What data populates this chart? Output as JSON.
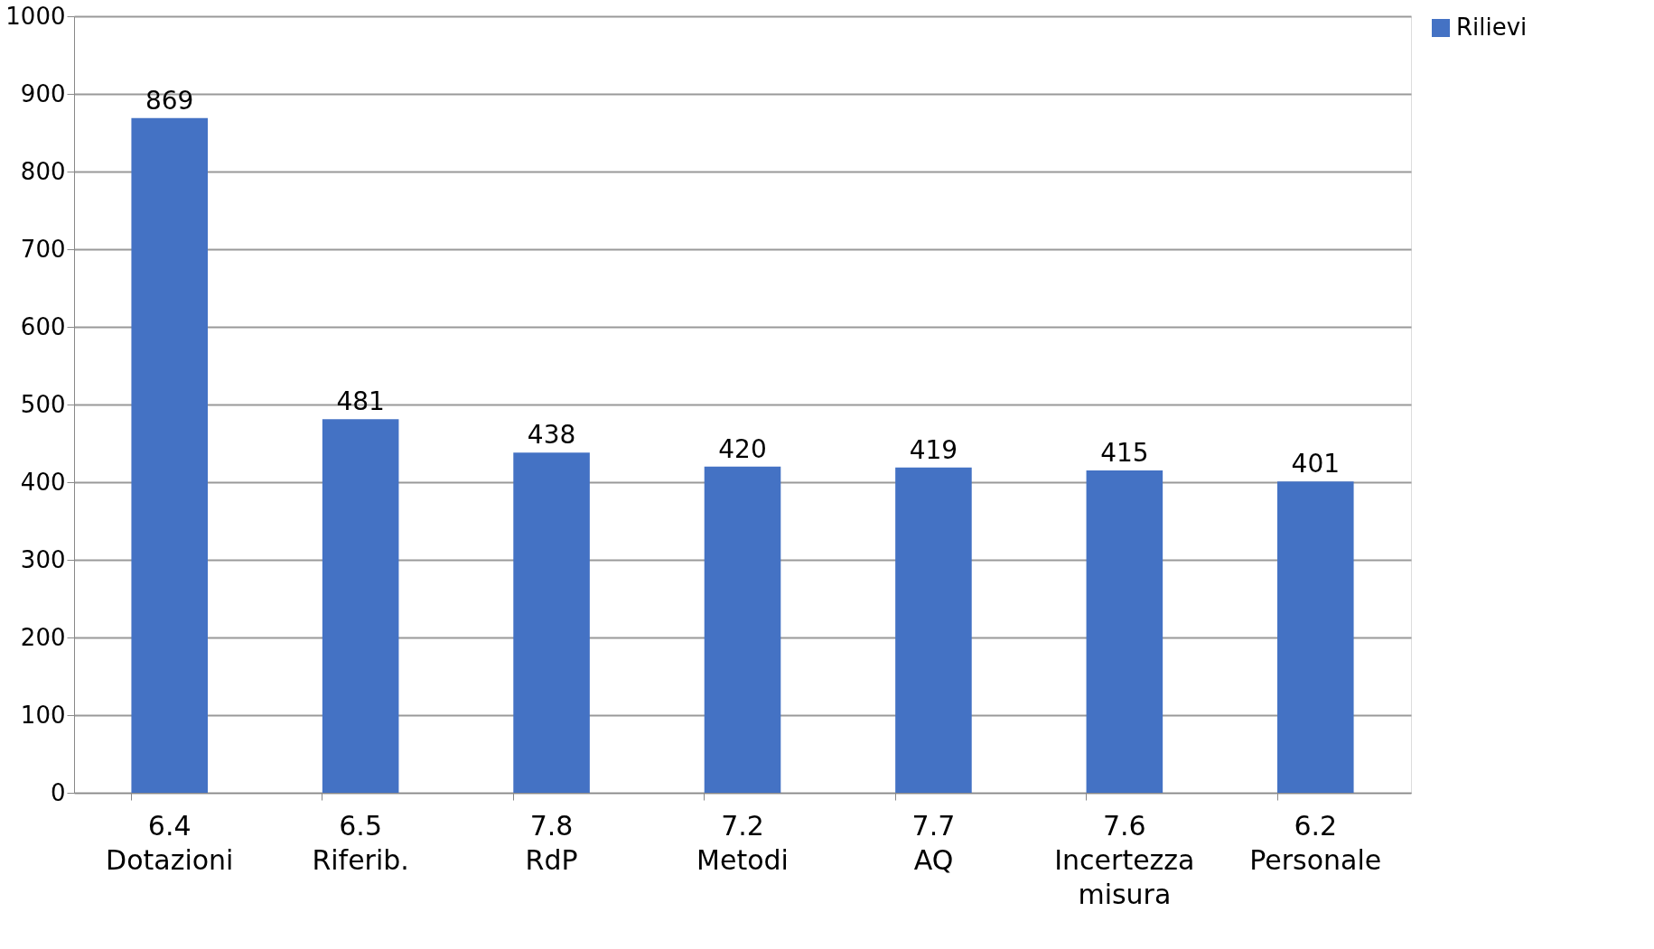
{
  "chart_data": {
    "type": "bar",
    "categories": [
      "6.4\nDotazioni",
      "6.5\nRiferib.",
      "7.8\nRdP",
      "7.2\nMetodi",
      "7.7\nAQ",
      "7.6\nIncertezza\nmisura",
      "6.2\nPersonale"
    ],
    "series": [
      {
        "name": "Rilievi",
        "color": "#4472c4",
        "values": [
          869,
          481,
          438,
          420,
          419,
          415,
          401
        ]
      }
    ],
    "ylim": [
      0,
      1000
    ],
    "yticks": [
      0,
      100,
      200,
      300,
      400,
      500,
      600,
      700,
      800,
      900,
      1000
    ],
    "grid": "y",
    "legend": "right",
    "data_labels": true
  }
}
